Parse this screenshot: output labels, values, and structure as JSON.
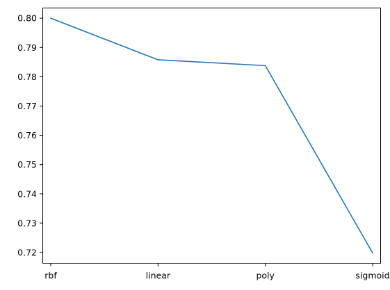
{
  "chart_data": {
    "type": "line",
    "categories": [
      "rbf",
      "linear",
      "poly",
      "sigmoid"
    ],
    "series": [
      {
        "values": [
          0.8,
          0.7858,
          0.7838,
          0.7198
        ],
        "color": "#1f77b4"
      }
    ],
    "yticks": [
      "0.72",
      "0.73",
      "0.74",
      "0.75",
      "0.76",
      "0.77",
      "0.78",
      "0.79",
      "0.80"
    ],
    "ylim": [
      0.7162,
      0.8036
    ],
    "grid": false
  }
}
